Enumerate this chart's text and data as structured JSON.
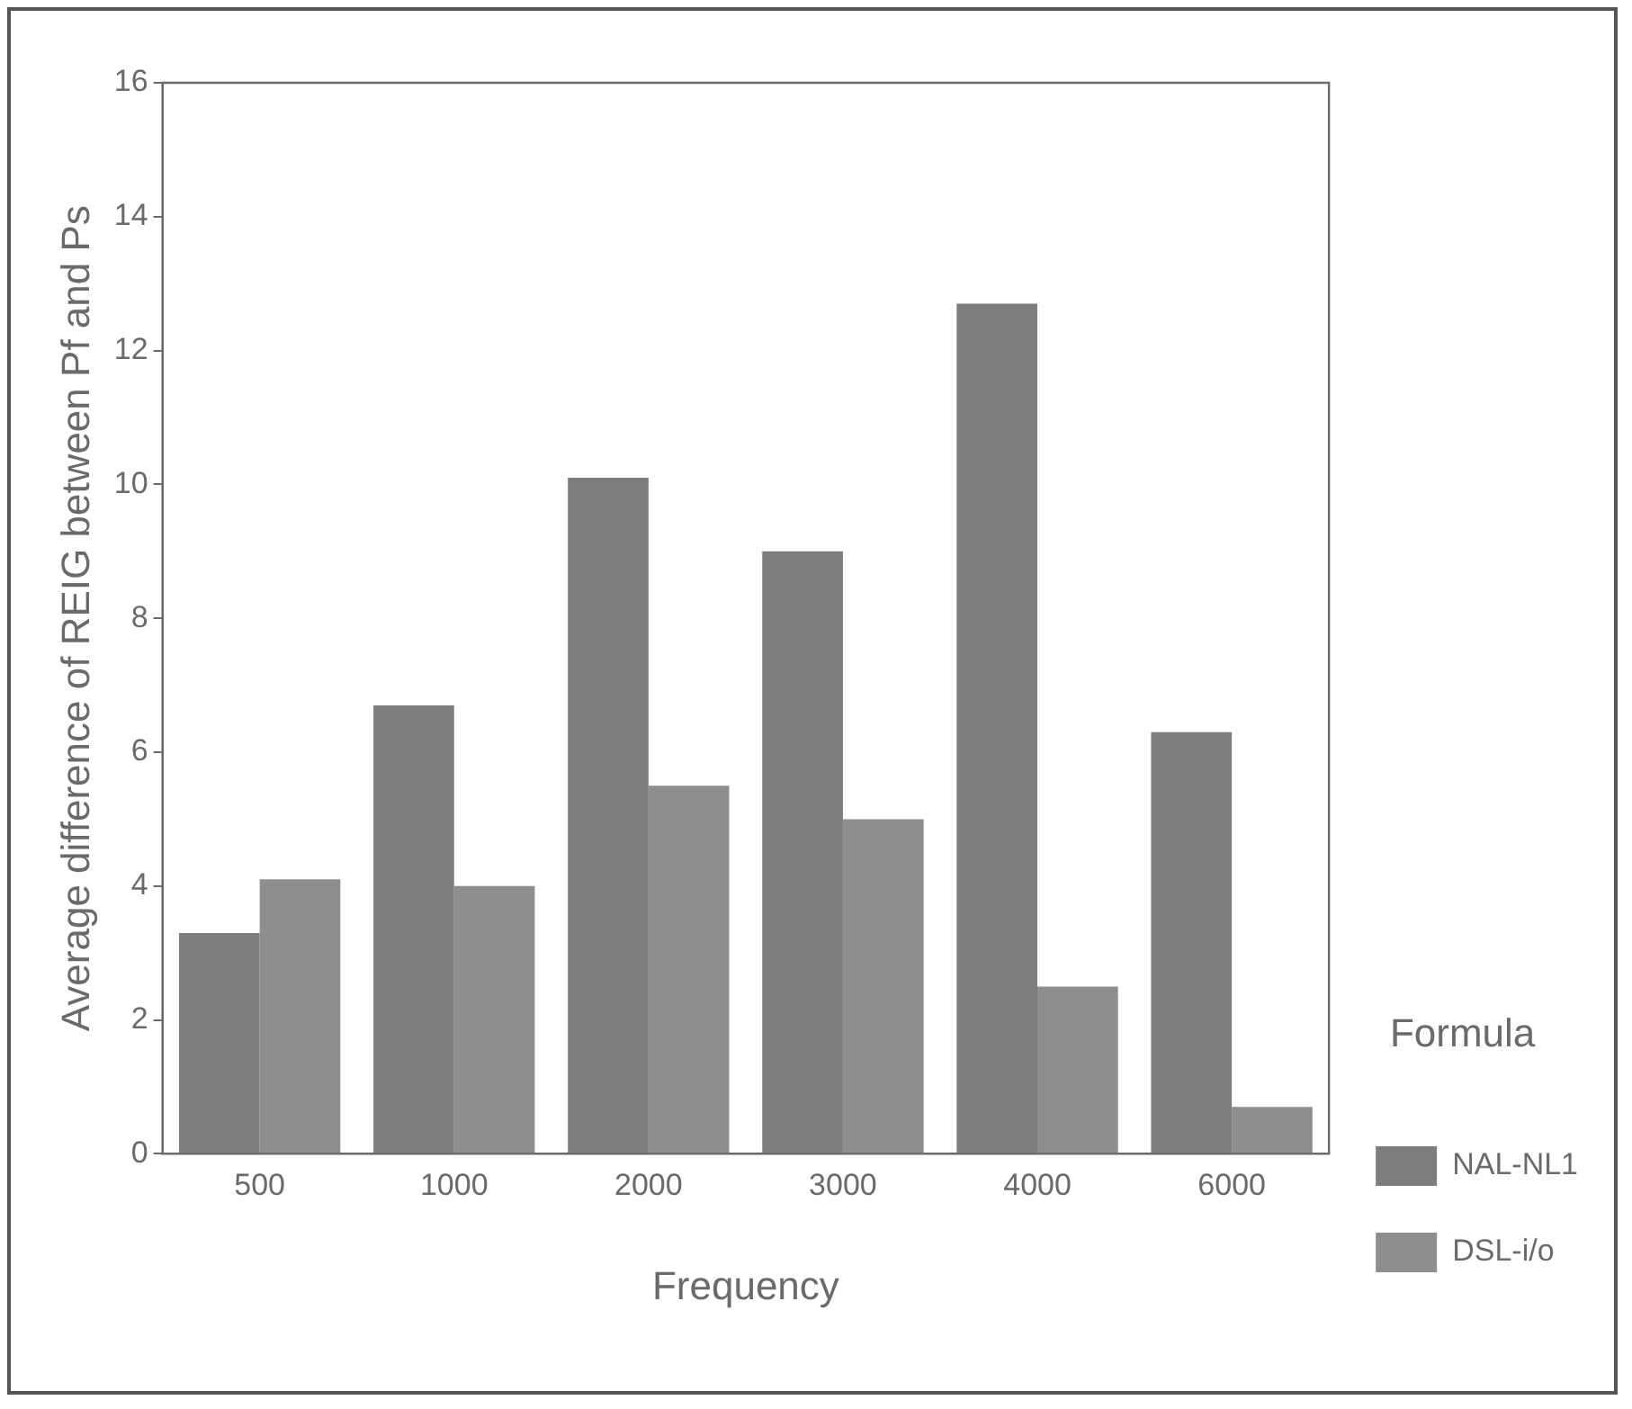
{
  "chart_data": {
    "type": "bar",
    "xlabel": "Frequency",
    "ylabel": "Average difference of REIG between Pf and Ps",
    "legend_title": "Formula",
    "categories": [
      "500",
      "1000",
      "2000",
      "3000",
      "4000",
      "6000"
    ],
    "series": [
      {
        "name": "NAL-NL1",
        "color": "#7d7d7d",
        "values": [
          3.3,
          6.7,
          10.1,
          9.0,
          12.7,
          6.3
        ]
      },
      {
        "name": "DSL-i/o",
        "color": "#8e8e8e",
        "values": [
          4.1,
          4.0,
          5.5,
          5.0,
          2.5,
          0.7
        ]
      }
    ],
    "ylim": [
      0,
      16
    ],
    "yticks": [
      0,
      2,
      4,
      6,
      8,
      10,
      12,
      14,
      16
    ],
    "grid": false,
    "legend": "right"
  }
}
